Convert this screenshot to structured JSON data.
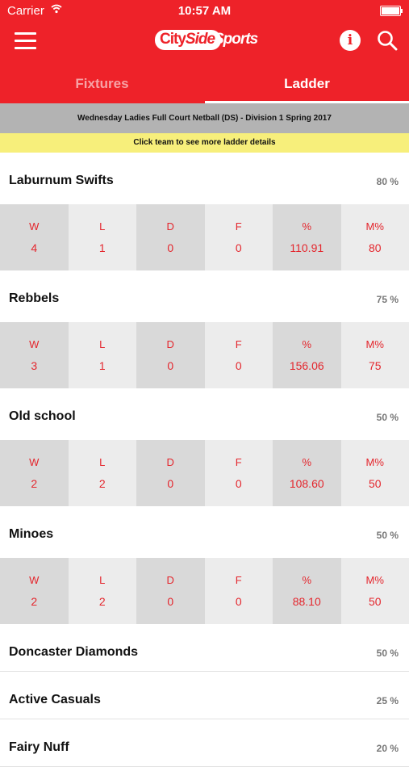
{
  "status": {
    "carrier": "Carrier",
    "time": "10:57 AM"
  },
  "header": {
    "logo_city": "City",
    "logo_side": "Side",
    "logo_sports": "Sports",
    "info_icon": "info-icon",
    "search_icon": "search-icon"
  },
  "tabs": [
    {
      "label": "Fixtures"
    },
    {
      "label": "Ladder"
    }
  ],
  "division": "Wednesday Ladies Full Court Netball (DS) - Division 1 Spring 2017",
  "hint": "Click team to see more ladder details",
  "stat_labels": [
    "W",
    "L",
    "D",
    "F",
    "%",
    "M%"
  ],
  "teams": [
    {
      "name": "Laburnum Swifts",
      "pct": "80 %",
      "stats": [
        "4",
        "1",
        "0",
        "0",
        "110.91",
        "80"
      ]
    },
    {
      "name": "Rebbels",
      "pct": "75 %",
      "stats": [
        "3",
        "1",
        "0",
        "0",
        "156.06",
        "75"
      ]
    },
    {
      "name": "Old school",
      "pct": "50 %",
      "stats": [
        "2",
        "2",
        "0",
        "0",
        "108.60",
        "50"
      ]
    },
    {
      "name": "Minoes",
      "pct": "50 %",
      "stats": [
        "2",
        "2",
        "0",
        "0",
        "88.10",
        "50"
      ]
    },
    {
      "name": "Doncaster Diamonds",
      "pct": "50 %"
    },
    {
      "name": "Active Casuals",
      "pct": "25 %"
    },
    {
      "name": "Fairy Nuff",
      "pct": "20 %"
    }
  ],
  "colors": {
    "brand_red": "#ee2229",
    "stat_red": "#e4262d",
    "hint_yellow": "#f7ef7b"
  }
}
